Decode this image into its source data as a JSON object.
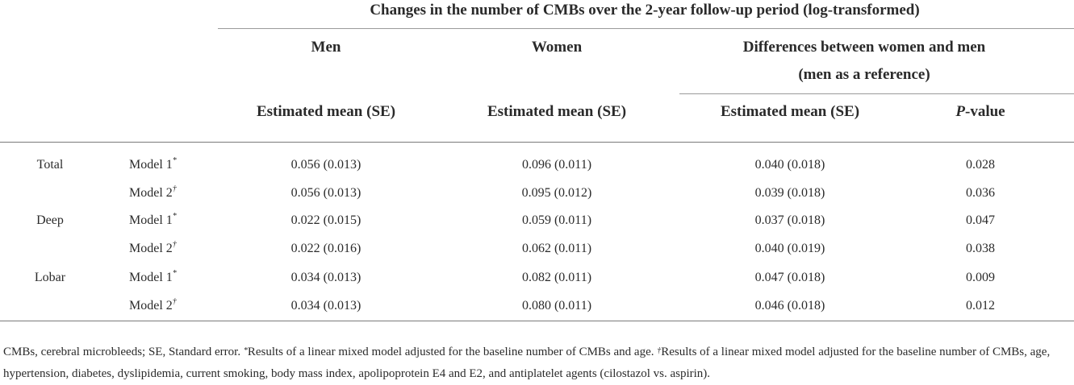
{
  "header": {
    "span_title": "Changes in the number of CMBs over the 2-year follow-up period (log-transformed)",
    "group_men": "Men",
    "group_women": "Women",
    "group_diff_line1": "Differences between women and men",
    "group_diff_line2": "(men as a reference)",
    "col_men_est": "Estimated mean (SE)",
    "col_women_est": "Estimated mean (SE)",
    "col_diff_est": "Estimated mean (SE)",
    "col_p_italic": "P",
    "col_p_rest": "-value"
  },
  "rows": [
    {
      "category": "Total",
      "model": "Model 1",
      "mark": "*",
      "men": "0.056 (0.013)",
      "women": "0.096 (0.011)",
      "diff": "0.040 (0.018)",
      "p": "0.028"
    },
    {
      "category": "",
      "model": "Model 2",
      "mark": "†",
      "men": "0.056 (0.013)",
      "women": "0.095 (0.012)",
      "diff": "0.039 (0.018)",
      "p": "0.036"
    },
    {
      "category": "Deep",
      "model": "Model 1",
      "mark": "*",
      "men": "0.022 (0.015)",
      "women": "0.059 (0.011)",
      "diff": "0.037 (0.018)",
      "p": "0.047"
    },
    {
      "category": "",
      "model": "Model 2",
      "mark": "†",
      "men": "0.022 (0.016)",
      "women": "0.062 (0.011)",
      "diff": "0.040 (0.019)",
      "p": "0.038"
    },
    {
      "category": "Lobar",
      "model": "Model 1",
      "mark": "*",
      "men": "0.034 (0.013)",
      "women": "0.082 (0.011)",
      "diff": "0.047 (0.018)",
      "p": "0.009"
    },
    {
      "category": "",
      "model": "Model 2",
      "mark": "†",
      "men": "0.034 (0.013)",
      "women": "0.080 (0.011)",
      "diff": "0.046 (0.018)",
      "p": "0.012"
    }
  ],
  "footnote": {
    "abbrev": "CMBs, cerebral microbleeds; SE, Standard error. ",
    "mark1": "*",
    "note1": "Results of a linear mixed model adjusted for the baseline number of CMBs and age. ",
    "mark2": "†",
    "note2": "Results of a linear mixed model adjusted for the baseline number of CMBs, age, hypertension, diabetes, dyslipidemia, current smoking, body mass index, apolipoprotein E4 and E2, and antiplatelet agents (cilostazol vs. aspirin)."
  }
}
